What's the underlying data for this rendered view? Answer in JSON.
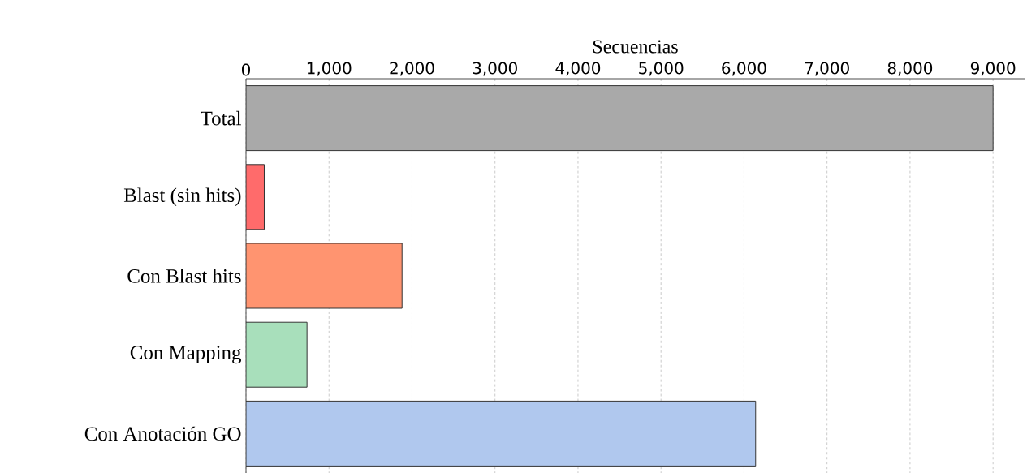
{
  "chart_data": {
    "type": "bar",
    "orientation": "horizontal",
    "xlabel": "Secuencias",
    "categories": [
      "Total",
      "Blast (sin hits)",
      "Con Blast hits",
      "Con Mapping",
      "Con Anotación GO"
    ],
    "values": [
      9000,
      220,
      1880,
      735,
      6140
    ],
    "colors": [
      "#a9a9a9",
      "#ff6b6b",
      "#ff9470",
      "#a8dfbb",
      "#b0c8ee"
    ],
    "xlim": [
      0,
      9380
    ],
    "xticks": [
      0,
      {
        "value": 1000,
        "label": "1,000"
      },
      {
        "value": 2000,
        "label": "2,000"
      },
      {
        "value": 3000,
        "label": "3,000"
      },
      {
        "value": 4000,
        "label": "4,000"
      },
      {
        "value": 5000,
        "label": "5,000"
      },
      {
        "value": 6000,
        "label": "6,000"
      },
      {
        "value": 7000,
        "label": "7,000"
      },
      {
        "value": 8000,
        "label": "8,000"
      },
      {
        "value": 9000,
        "label": "9,000"
      }
    ],
    "grid": "x"
  }
}
